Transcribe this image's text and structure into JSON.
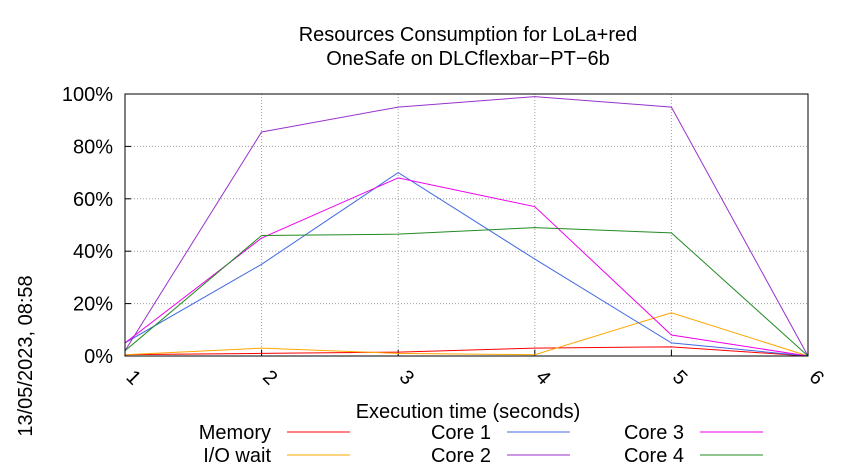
{
  "chart_data": {
    "type": "line",
    "title": [
      "Resources Consumption for LoLa+red",
      "OneSafe on DLCflexbar−PT−6b"
    ],
    "xlabel": "Execution time (seconds)",
    "ylabel": "",
    "x": [
      1,
      2,
      3,
      4,
      5,
      6
    ],
    "xlim": [
      1,
      6
    ],
    "ylim": [
      0,
      100
    ],
    "xticks": [
      "1",
      "2",
      "3",
      "4",
      "5",
      "6"
    ],
    "yticks": [
      "0%",
      "20%",
      "40%",
      "60%",
      "80%",
      "100%"
    ],
    "yticks_values": [
      0,
      20,
      40,
      60,
      80,
      100
    ],
    "grid": true,
    "legend_position": "bottom",
    "series": [
      {
        "name": "Memory",
        "color": "#ff0000",
        "values": [
          0.5,
          1.0,
          1.5,
          3.0,
          3.5,
          0
        ]
      },
      {
        "name": "I/O wait",
        "color": "#ffa500",
        "values": [
          0.5,
          3.0,
          1.0,
          0.5,
          16.5,
          0
        ]
      },
      {
        "name": "Core 1",
        "color": "#4169e1",
        "values": [
          5,
          35,
          70,
          37,
          5,
          0
        ]
      },
      {
        "name": "Core 2",
        "color": "#9932cc",
        "values": [
          2,
          85.5,
          95,
          99,
          95,
          0
        ]
      },
      {
        "name": "Core 3",
        "color": "#ee00ee",
        "values": [
          5,
          45,
          68,
          57,
          8,
          0
        ]
      },
      {
        "name": "Core 4",
        "color": "#228b22",
        "values": [
          2,
          46,
          46.5,
          49,
          47,
          0
        ]
      }
    ]
  },
  "side_label": "13/05/2023, 08:58"
}
